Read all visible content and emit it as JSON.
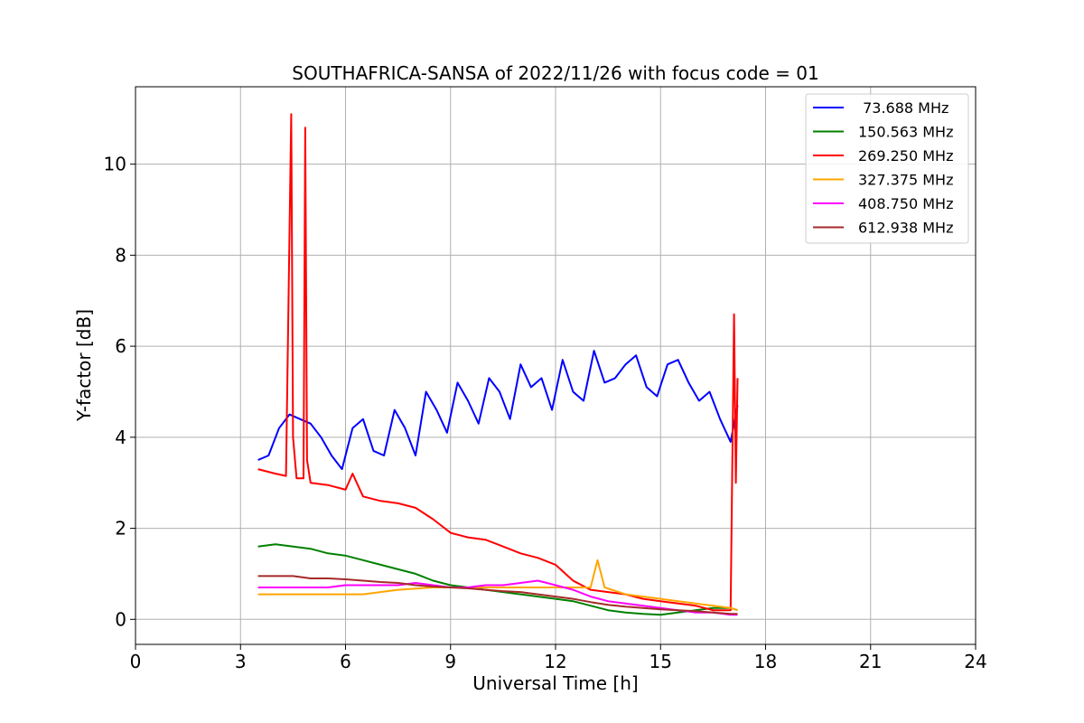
{
  "chart_data": {
    "type": "line",
    "title": "SOUTHAFRICA-SANSA of 2022/11/26 with focus code = 01",
    "xlabel": "Universal Time [h]",
    "ylabel": "Y-factor [dB]",
    "xlim": [
      0,
      24
    ],
    "ylim": [
      -0.55,
      11.7
    ],
    "xticks": [
      0,
      3,
      6,
      9,
      12,
      15,
      18,
      21,
      24
    ],
    "xtick_labels": [
      "0",
      "3",
      "6",
      "9",
      "12",
      "15",
      "18",
      "21",
      "24"
    ],
    "yticks": [
      0,
      2,
      4,
      6,
      8,
      10
    ],
    "ytick_labels": [
      "0",
      "2",
      "4",
      "6",
      "8",
      "10"
    ],
    "grid": true,
    "legend_position": "top-right",
    "series": [
      {
        "name": " 73.688 MHz",
        "color": "#0000ff",
        "x": [
          3.5,
          3.8,
          4.1,
          4.4,
          4.7,
          5.0,
          5.3,
          5.6,
          5.9,
          6.2,
          6.5,
          6.8,
          7.1,
          7.4,
          7.7,
          8.0,
          8.3,
          8.6,
          8.9,
          9.2,
          9.5,
          9.8,
          10.1,
          10.4,
          10.7,
          11.0,
          11.3,
          11.6,
          11.9,
          12.2,
          12.5,
          12.8,
          13.1,
          13.4,
          13.7,
          14.0,
          14.3,
          14.6,
          14.9,
          15.2,
          15.5,
          15.8,
          16.1,
          16.4,
          16.7,
          17.0,
          17.2
        ],
        "values": [
          3.5,
          3.6,
          4.2,
          4.5,
          4.4,
          4.3,
          4.0,
          3.6,
          3.3,
          4.2,
          4.4,
          3.7,
          3.6,
          4.6,
          4.2,
          3.6,
          5.0,
          4.6,
          4.1,
          5.2,
          4.8,
          4.3,
          5.3,
          5.0,
          4.4,
          5.6,
          5.1,
          5.3,
          4.6,
          5.7,
          5.0,
          4.8,
          5.9,
          5.2,
          5.3,
          5.6,
          5.8,
          5.1,
          4.9,
          5.6,
          5.7,
          5.2,
          4.8,
          5.0,
          4.4,
          3.9,
          4.7
        ]
      },
      {
        "name": "150.563 MHz",
        "color": "#008000",
        "x": [
          3.5,
          4.0,
          4.5,
          5.0,
          5.5,
          6.0,
          6.5,
          7.0,
          7.5,
          8.0,
          8.5,
          9.0,
          9.5,
          10.0,
          10.5,
          11.0,
          11.5,
          12.0,
          12.5,
          13.0,
          13.5,
          14.0,
          14.5,
          15.0,
          15.5,
          16.0,
          16.5,
          17.0,
          17.2
        ],
        "values": [
          1.6,
          1.65,
          1.6,
          1.55,
          1.45,
          1.4,
          1.3,
          1.2,
          1.1,
          1.0,
          0.85,
          0.75,
          0.7,
          0.65,
          0.6,
          0.55,
          0.5,
          0.45,
          0.4,
          0.3,
          0.2,
          0.15,
          0.12,
          0.1,
          0.15,
          0.2,
          0.25,
          0.25,
          0.2
        ]
      },
      {
        "name": "269.250 MHz",
        "color": "#ff0000",
        "x": [
          3.5,
          4.0,
          4.3,
          4.45,
          4.5,
          4.6,
          4.8,
          4.85,
          4.9,
          5.0,
          5.5,
          6.0,
          6.2,
          6.5,
          7.0,
          7.5,
          8.0,
          8.5,
          9.0,
          9.5,
          10.0,
          10.5,
          11.0,
          11.5,
          12.0,
          12.5,
          13.0,
          13.5,
          14.0,
          14.5,
          15.0,
          15.5,
          16.0,
          16.5,
          17.0,
          17.1,
          17.15,
          17.2
        ],
        "values": [
          3.3,
          3.2,
          3.15,
          11.1,
          4.0,
          3.1,
          3.1,
          10.8,
          3.5,
          3.0,
          2.95,
          2.85,
          3.2,
          2.7,
          2.6,
          2.55,
          2.45,
          2.2,
          1.9,
          1.8,
          1.75,
          1.6,
          1.45,
          1.35,
          1.2,
          0.85,
          0.65,
          0.6,
          0.55,
          0.45,
          0.4,
          0.35,
          0.3,
          0.2,
          0.2,
          6.7,
          3.0,
          5.3
        ]
      },
      {
        "name": "327.375 MHz",
        "color": "#ffa500",
        "x": [
          3.5,
          4.5,
          5.5,
          6.5,
          7.5,
          8.5,
          9.5,
          10.5,
          11.5,
          12.5,
          13.0,
          13.2,
          13.4,
          14.0,
          14.5,
          15.0,
          15.5,
          16.0,
          16.5,
          17.0,
          17.2
        ],
        "values": [
          0.55,
          0.55,
          0.55,
          0.55,
          0.65,
          0.7,
          0.7,
          0.7,
          0.7,
          0.7,
          0.7,
          1.3,
          0.7,
          0.55,
          0.5,
          0.45,
          0.4,
          0.35,
          0.3,
          0.25,
          0.2
        ]
      },
      {
        "name": "408.750 MHz",
        "color": "#ff00ff",
        "x": [
          3.5,
          4.5,
          5.5,
          6.0,
          6.5,
          7.0,
          7.5,
          8.0,
          8.5,
          9.0,
          9.5,
          10.0,
          10.5,
          11.0,
          11.5,
          12.0,
          12.5,
          13.0,
          13.5,
          14.0,
          14.5,
          15.0,
          15.5,
          16.0,
          16.5,
          17.0,
          17.2
        ],
        "values": [
          0.7,
          0.7,
          0.7,
          0.75,
          0.75,
          0.75,
          0.75,
          0.8,
          0.75,
          0.7,
          0.7,
          0.75,
          0.75,
          0.8,
          0.85,
          0.75,
          0.65,
          0.5,
          0.4,
          0.35,
          0.3,
          0.25,
          0.2,
          0.15,
          0.15,
          0.1,
          0.1
        ]
      },
      {
        "name": "612.938 MHz",
        "color": "#a52a2a",
        "x": [
          3.5,
          4.0,
          4.5,
          5.0,
          5.5,
          6.0,
          6.5,
          7.0,
          7.5,
          8.0,
          8.5,
          9.0,
          9.5,
          10.0,
          10.5,
          11.0,
          11.5,
          12.0,
          12.5,
          13.0,
          13.5,
          14.0,
          14.5,
          15.0,
          15.5,
          16.0,
          16.5,
          17.0,
          17.2
        ],
        "values": [
          0.95,
          0.95,
          0.95,
          0.9,
          0.9,
          0.88,
          0.85,
          0.82,
          0.8,
          0.75,
          0.72,
          0.7,
          0.68,
          0.65,
          0.62,
          0.6,
          0.55,
          0.5,
          0.45,
          0.38,
          0.32,
          0.28,
          0.25,
          0.22,
          0.2,
          0.18,
          0.15,
          0.12,
          0.12
        ]
      }
    ]
  }
}
